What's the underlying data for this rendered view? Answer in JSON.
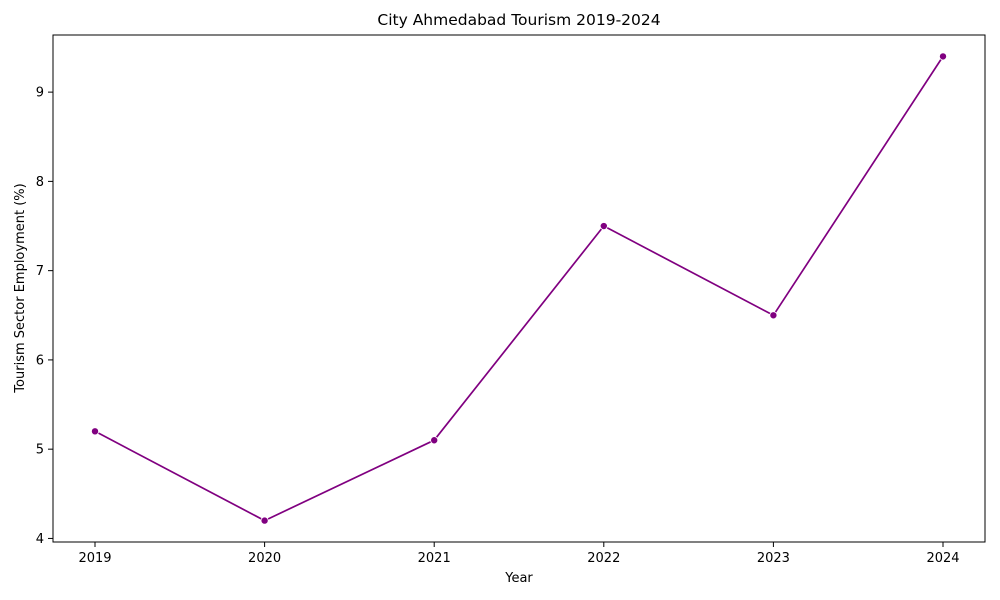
{
  "chart_data": {
    "type": "line",
    "title": "City Ahmedabad Tourism 2019-2024",
    "xlabel": "Year",
    "ylabel": "Tourism Sector Employment (%)",
    "x": [
      "2019",
      "2020",
      "2021",
      "2022",
      "2023",
      "2024"
    ],
    "series": [
      {
        "values": [
          5.2,
          4.2,
          5.1,
          7.5,
          6.5,
          9.4
        ]
      }
    ],
    "yticks": [
      "4",
      "5",
      "6",
      "7",
      "8",
      "9"
    ],
    "ylim": [
      3.96,
      9.64
    ],
    "grid": false,
    "legend": "none",
    "line_color": "#800080",
    "marker": "circle"
  }
}
